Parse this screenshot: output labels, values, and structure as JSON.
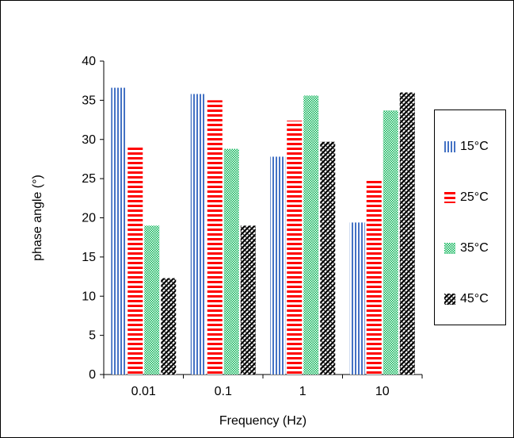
{
  "chart_data": {
    "type": "bar",
    "xlabel": "Frequency (Hz)",
    "ylabel": "phase angle (°)",
    "categories": [
      "0.01",
      "0.1",
      "1",
      "10"
    ],
    "ylim": [
      0,
      40
    ],
    "yticks": [
      0,
      5,
      10,
      15,
      20,
      25,
      30,
      35,
      40
    ],
    "grid": false,
    "legend_position": "right",
    "series": [
      {
        "name": "15°C",
        "values": [
          36.6,
          35.8,
          27.8,
          19.4
        ],
        "color": "#4472C4",
        "pattern": "vertical-lines"
      },
      {
        "name": "25°C",
        "values": [
          29.0,
          35.0,
          32.4,
          24.8
        ],
        "color": "#FF0000",
        "pattern": "horizontal-lines"
      },
      {
        "name": "35°C",
        "values": [
          19.0,
          28.8,
          35.6,
          33.7
        ],
        "color": "#00B050",
        "pattern": "dots"
      },
      {
        "name": "45°C",
        "values": [
          12.3,
          19.0,
          29.7,
          36.0
        ],
        "color": "#000000",
        "pattern": "diagonal-checker"
      }
    ]
  }
}
